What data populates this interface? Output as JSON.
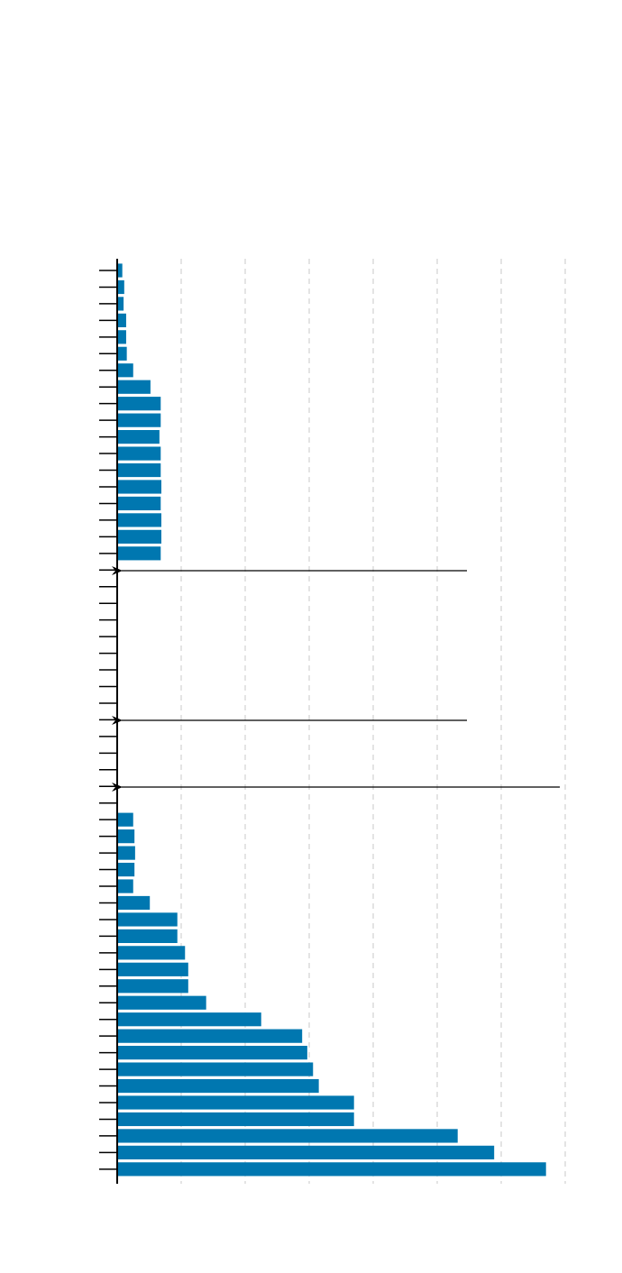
{
  "chart_data": {
    "type": "barh",
    "categories": [
      null,
      null,
      null,
      null,
      null,
      null,
      null,
      null,
      null,
      null,
      null,
      null,
      null,
      null,
      null,
      null,
      null,
      null,
      null,
      null,
      null,
      null,
      null,
      null,
      null,
      null,
      null,
      null,
      null,
      null,
      null,
      null,
      null,
      null,
      null,
      null,
      null,
      null,
      null,
      null,
      null,
      null,
      null,
      null,
      null,
      null,
      null,
      null,
      null,
      null,
      null,
      null,
      null,
      null,
      null
    ],
    "values": [
      0.08,
      0.11,
      0.1,
      0.14,
      0.14,
      0.15,
      0.25,
      0.52,
      0.68,
      0.68,
      0.66,
      0.68,
      0.68,
      0.69,
      0.68,
      0.69,
      0.69,
      0.68,
      null,
      null,
      null,
      null,
      null,
      null,
      null,
      null,
      null,
      null,
      null,
      null,
      null,
      null,
      null,
      0.25,
      0.27,
      0.28,
      0.27,
      0.25,
      0.51,
      0.94,
      0.94,
      1.06,
      1.11,
      1.11,
      1.39,
      2.25,
      2.89,
      2.97,
      3.06,
      3.15,
      3.7,
      3.7,
      5.32,
      5.89,
      6.7
    ],
    "color": "#0077b0",
    "xlim": [
      0,
      7
    ],
    "xticks": [
      0,
      1,
      2,
      3,
      4,
      5,
      6,
      7
    ],
    "grid": true
  }
}
